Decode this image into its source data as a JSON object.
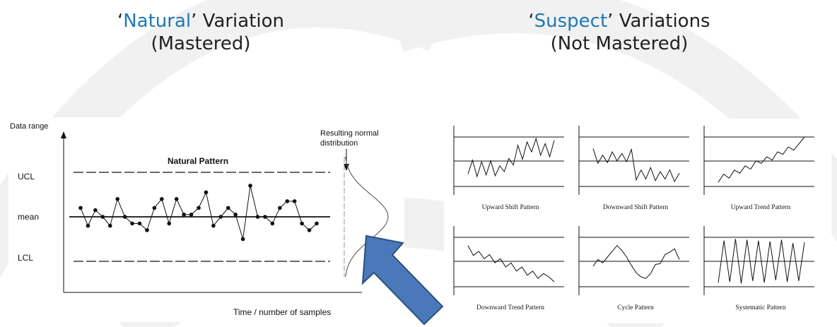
{
  "headings": {
    "left": {
      "quote_open": "‘",
      "highlight": "Natural",
      "rest": "’ Variation",
      "line2": "(Mastered)"
    },
    "right": {
      "quote_open": "‘",
      "highlight": "Suspect",
      "rest": "’ Variations",
      "line2": "(Not Mastered)"
    }
  },
  "colors": {
    "highlight": "#1f78b4",
    "arrow_fill": "#4a78b8",
    "arrow_stroke": "#2b4f80",
    "line": "#111111"
  },
  "icons": {
    "arrow": "up-left-arrow-icon"
  },
  "chart_data": [
    {
      "type": "line",
      "title": "Natural Pattern",
      "ylabel": "Data range",
      "xlabel": "Time / number of samples",
      "y_reference_labels": [
        "UCL",
        "mean",
        "LCL"
      ],
      "annotation": "Resulting normal distribution",
      "ylim": [
        -3,
        3
      ],
      "limits": {
        "ucl": 2,
        "mean": 0,
        "lcl": -2
      },
      "series": [
        {
          "values": [
            0.4,
            -0.4,
            0.3,
            0.0,
            -0.4,
            0.8,
            0.0,
            -0.3,
            -0.3,
            -0.6,
            0.4,
            0.8,
            -0.3,
            0.8,
            0.1,
            0.1,
            0.4,
            1.1,
            -0.4,
            0.0,
            0.4,
            0.1,
            -1.0,
            1.4,
            0.0,
            0.0,
            -0.3,
            0.4,
            0.7,
            0.7,
            -0.3,
            -0.6,
            -0.3
          ]
        }
      ]
    },
    {
      "type": "line",
      "panels": [
        {
          "label": "Upward Shift Pattern",
          "values": [
            1.5,
            3.2,
            1.2,
            3.0,
            1.4,
            3.1,
            1.3,
            2.5,
            1.8,
            3.4,
            2.6,
            5.0,
            3.3,
            5.4,
            4.2,
            5.8,
            3.8,
            5.2,
            3.6,
            5.6
          ]
        },
        {
          "label": "Downward Shift Pattern",
          "values": [
            4.6,
            2.8,
            3.8,
            2.9,
            4.2,
            3.1,
            4.0,
            3.0,
            4.5,
            0.8,
            2.0,
            0.9,
            2.3,
            0.7,
            1.8,
            0.9,
            2.0,
            0.6,
            1.6
          ]
        },
        {
          "label": "Upward Trend Pattern",
          "values": [
            0.5,
            1.5,
            1.0,
            2.0,
            1.6,
            2.5,
            2.1,
            3.1,
            2.8,
            3.6,
            3.2,
            4.2,
            3.9,
            4.8,
            4.4,
            5.2,
            6.0
          ]
        },
        {
          "label": "Downward Trend Pattern",
          "values": [
            5.0,
            3.8,
            4.3,
            3.4,
            3.9,
            2.9,
            3.4,
            2.4,
            2.9,
            1.9,
            2.4,
            1.4,
            1.9,
            1.0,
            1.6,
            1.2,
            0.6
          ]
        },
        {
          "label": "Cycle Pattern",
          "values": [
            2.5,
            3.3,
            2.9,
            3.6,
            4.3,
            5.0,
            4.4,
            3.6,
            2.6,
            1.7,
            1.2,
            1.0,
            1.6,
            2.7,
            2.8,
            3.9,
            4.2,
            4.6,
            3.3
          ]
        },
        {
          "label": "Systematic Pattern",
          "values": [
            0.5,
            5.6,
            0.6,
            5.8,
            0.4,
            5.7,
            0.7,
            5.6,
            0.5,
            5.5,
            0.8,
            5.7,
            0.6,
            5.3,
            0.7,
            5.4
          ]
        }
      ],
      "limits": {
        "ucl": 6,
        "center": 3,
        "lcl": 0
      }
    }
  ]
}
